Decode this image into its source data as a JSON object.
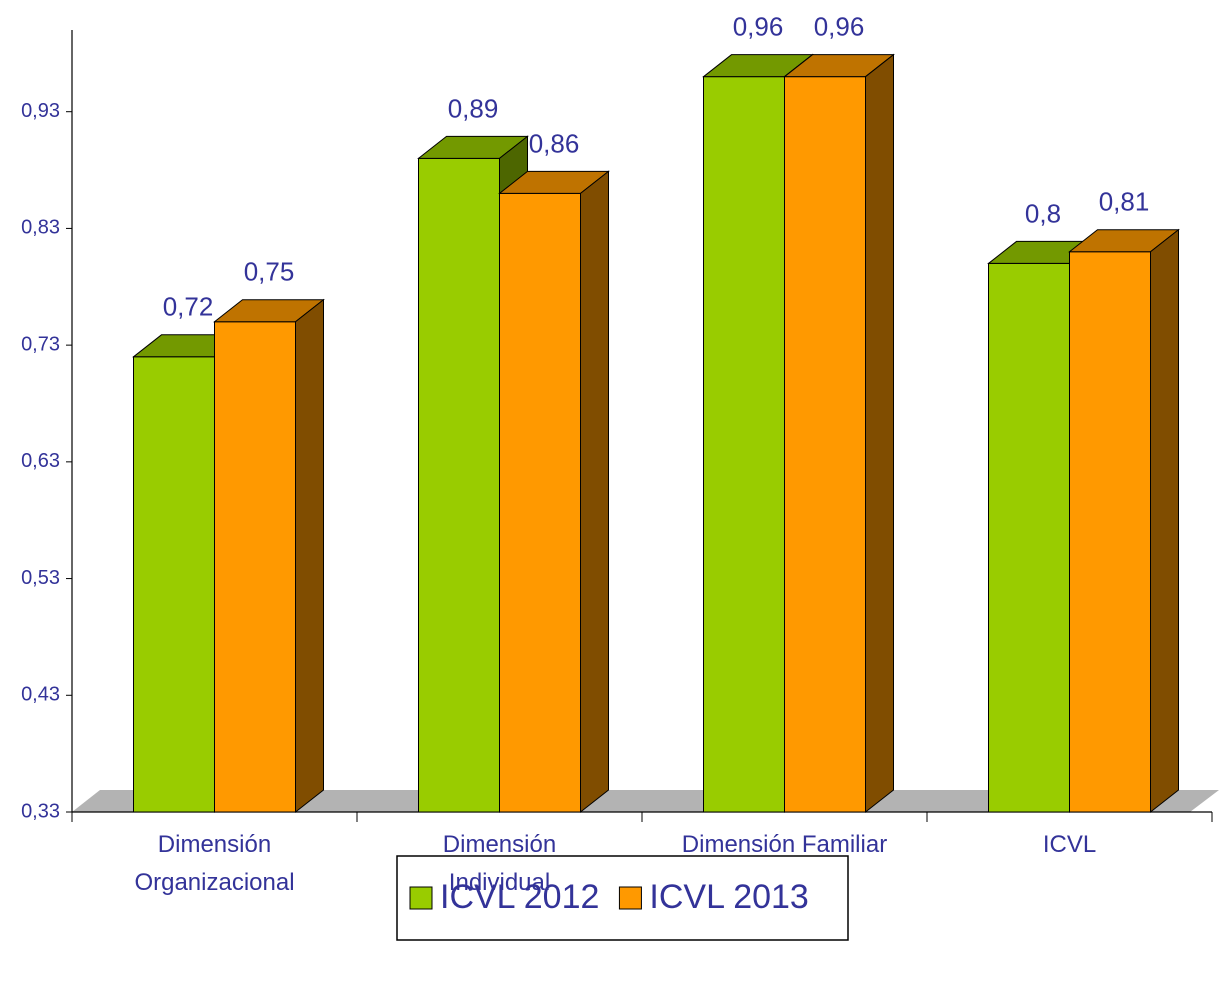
{
  "chart_data": {
    "type": "bar3d",
    "categories": [
      "Dimensión\nOrganizacional",
      "Dimensión\nIndividual",
      "Dimensión Familiar",
      "ICVL"
    ],
    "series": [
      {
        "name": "ICVL 2012",
        "color": "#99cc00",
        "values": [
          0.72,
          0.89,
          0.96,
          0.8
        ],
        "value_labels": [
          "0,72",
          "0,89",
          "0,96",
          "0,8"
        ]
      },
      {
        "name": "ICVL 2013",
        "color": "#ff9900",
        "values": [
          0.75,
          0.86,
          0.96,
          0.81
        ],
        "value_labels": [
          "0,75",
          "0,86",
          "0,96",
          "0,81"
        ]
      }
    ],
    "ylim": [
      0.33,
      1.0
    ],
    "yticks": [
      {
        "value": 0.33,
        "label": "0,33"
      },
      {
        "value": 0.43,
        "label": "0,43"
      },
      {
        "value": 0.53,
        "label": "0,53"
      },
      {
        "value": 0.63,
        "label": "0,63"
      },
      {
        "value": 0.73,
        "label": "0,73"
      },
      {
        "value": 0.83,
        "label": "0,83"
      },
      {
        "value": 0.93,
        "label": "0,93"
      }
    ],
    "legend": "bottom"
  }
}
